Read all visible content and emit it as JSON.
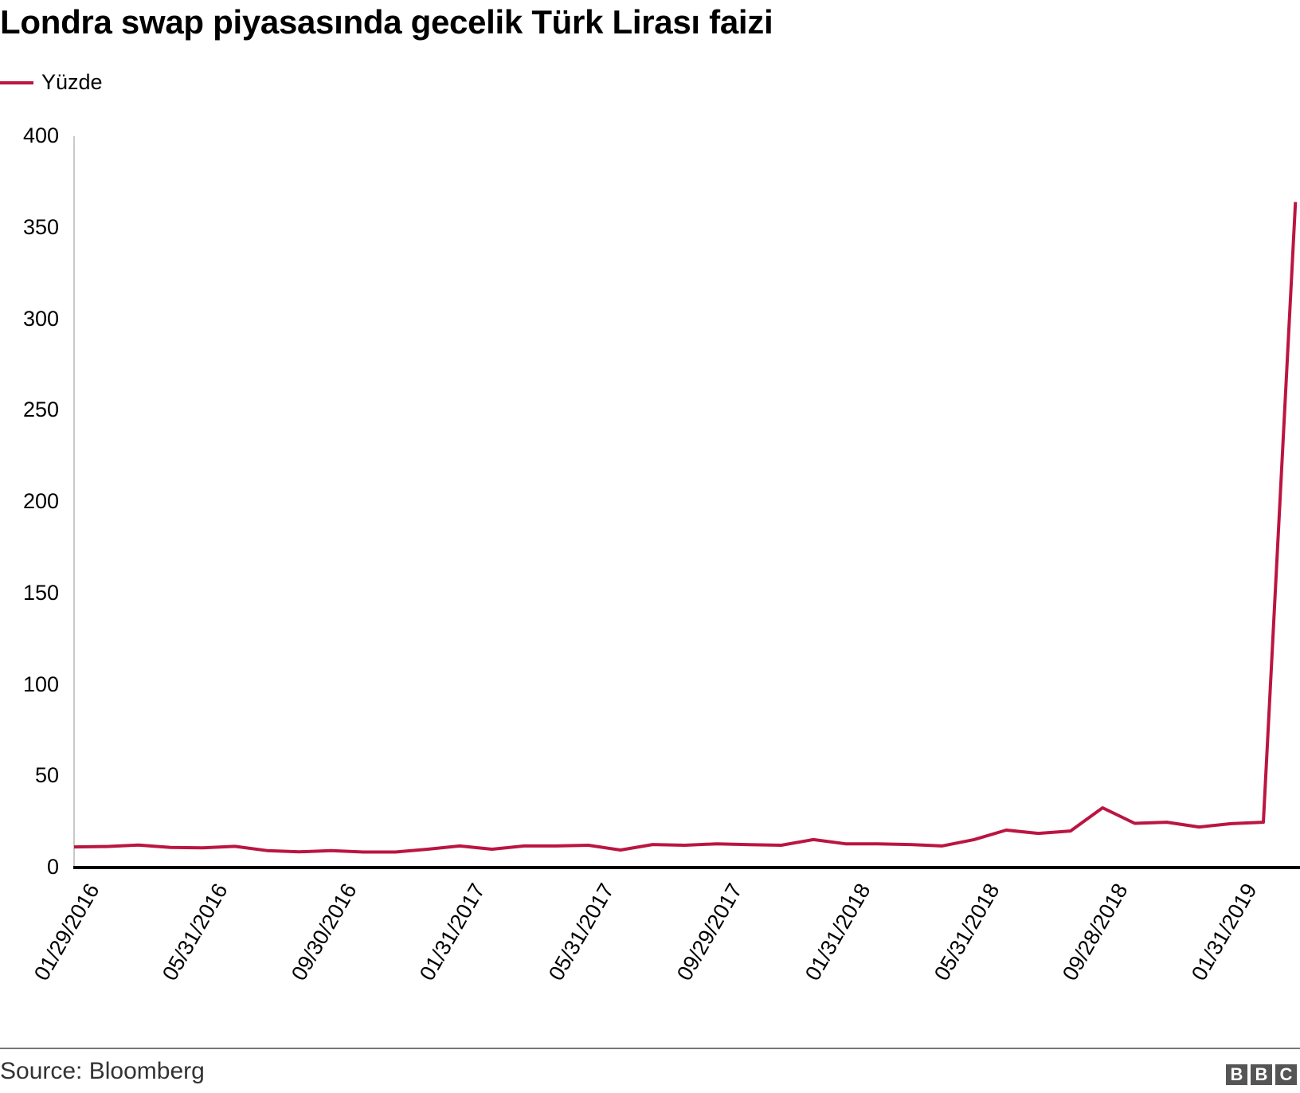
{
  "title": "Londra swap piyasasında gecelik Türk Lirası faizi",
  "legend": {
    "label": "Yüzde",
    "color": "#BB1541"
  },
  "footer": {
    "source": "Source: Bloomberg",
    "logo": [
      "B",
      "B",
      "C"
    ]
  },
  "chart_data": {
    "type": "line",
    "title": "Londra swap piyasasında gecelik Türk Lirası faizi",
    "xlabel": "",
    "ylabel": "Yüzde",
    "ylim": [
      0,
      400
    ],
    "yticks": [
      0,
      50,
      100,
      150,
      200,
      250,
      300,
      350,
      400
    ],
    "xtick_labels": [
      "01/29/2016",
      "05/31/2016",
      "09/30/2016",
      "01/31/2017",
      "05/31/2017",
      "09/29/2017",
      "01/31/2018",
      "05/31/2018",
      "09/28/2018",
      "01/31/2019"
    ],
    "grid": false,
    "legend_position": "top-left",
    "series": [
      {
        "name": "Yüzde",
        "color": "#BB1541",
        "values": [
          11.3,
          11.5,
          12.3,
          11.0,
          10.8,
          11.6,
          9.3,
          8.6,
          9.3,
          8.5,
          8.5,
          10.0,
          11.8,
          10.0,
          11.8,
          11.8,
          12.2,
          9.6,
          12.6,
          12.2,
          13.0,
          12.5,
          12.2,
          15.3,
          13.0,
          13.0,
          12.6,
          11.8,
          15.3,
          20.5,
          18.7,
          20.0,
          32.7,
          24.2,
          24.8,
          22.2,
          24.0,
          24.8,
          364.0
        ]
      }
    ],
    "point_spacing": "monthly",
    "source": "Bloomberg"
  }
}
